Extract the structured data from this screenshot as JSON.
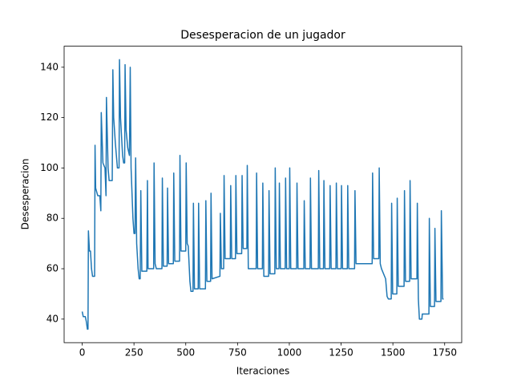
{
  "chart_data": {
    "type": "line",
    "title": "Desesperacion de un jugador",
    "x_label": "Iteraciones",
    "y_label": "Desesperacion",
    "x": [
      0,
      5,
      15,
      20,
      25,
      28,
      30,
      35,
      40,
      45,
      50,
      60,
      62,
      65,
      75,
      85,
      90,
      92,
      100,
      110,
      115,
      117,
      125,
      130,
      145,
      148,
      152,
      160,
      170,
      178,
      180,
      185,
      195,
      200,
      205,
      207,
      212,
      220,
      228,
      232,
      236,
      245,
      250,
      255,
      258,
      263,
      270,
      275,
      280,
      283,
      288,
      300,
      312,
      315,
      318,
      345,
      347,
      352,
      358,
      385,
      387,
      392,
      410,
      412,
      417,
      440,
      442,
      447,
      470,
      472,
      477,
      500,
      502,
      507,
      512,
      520,
      525,
      535,
      537,
      542,
      560,
      562,
      567,
      595,
      597,
      602,
      620,
      622,
      627,
      665,
      667,
      672,
      683,
      685,
      690,
      715,
      717,
      722,
      740,
      742,
      747,
      770,
      772,
      777,
      795,
      797,
      802,
      840,
      842,
      847,
      870,
      872,
      877,
      900,
      902,
      907,
      930,
      932,
      937,
      950,
      952,
      957,
      980,
      982,
      987,
      1000,
      1002,
      1007,
      1035,
      1037,
      1042,
      1070,
      1072,
      1077,
      1100,
      1102,
      1107,
      1140,
      1142,
      1147,
      1165,
      1167,
      1172,
      1195,
      1197,
      1202,
      1225,
      1227,
      1232,
      1250,
      1252,
      1257,
      1280,
      1282,
      1287,
      1315,
      1317,
      1322,
      1400,
      1402,
      1407,
      1432,
      1434,
      1439,
      1445,
      1465,
      1472,
      1478,
      1492,
      1494,
      1499,
      1519,
      1521,
      1526,
      1554,
      1556,
      1561,
      1581,
      1583,
      1588,
      1616,
      1618,
      1623,
      1628,
      1640,
      1642,
      1674,
      1676,
      1681,
      1701,
      1703,
      1708,
      1732,
      1734,
      1740,
      1745
    ],
    "series": [
      {
        "name": "Desesperacion",
        "color": "#1f77b4",
        "values": [
          43,
          41,
          41,
          39,
          36,
          36,
          75,
          67,
          67,
          60,
          57,
          57,
          109,
          92,
          89,
          89,
          83,
          122,
          102,
          100,
          89,
          128,
          100,
          95,
          95,
          139,
          120,
          110,
          100,
          100,
          143,
          120,
          105,
          102,
          102,
          141,
          115,
          108,
          105,
          140,
          100,
          80,
          74,
          74,
          104,
          70,
          60,
          56,
          56,
          91,
          59,
          59,
          59,
          95,
          60,
          60,
          102,
          62,
          60,
          60,
          96,
          61,
          61,
          92,
          62,
          62,
          98,
          63,
          63,
          105,
          67,
          67,
          102,
          70,
          69,
          55,
          51,
          51,
          86,
          52,
          52,
          86,
          52,
          52,
          87,
          55,
          55,
          90,
          56,
          57,
          82,
          60,
          60,
          97,
          64,
          64,
          93,
          64,
          64,
          97,
          66,
          66,
          97,
          68,
          68,
          101,
          60,
          60,
          98,
          60,
          60,
          94,
          57,
          57,
          91,
          58,
          58,
          100,
          60,
          60,
          94,
          60,
          60,
          96,
          60,
          60,
          100,
          60,
          60,
          94,
          60,
          60,
          87,
          60,
          60,
          96,
          60,
          60,
          99,
          60,
          60,
          95,
          60,
          60,
          93,
          60,
          60,
          94,
          60,
          60,
          93,
          60,
          60,
          93,
          60,
          60,
          91,
          62,
          62,
          98,
          64,
          64,
          100,
          62,
          60,
          56,
          49,
          48,
          48,
          86,
          50,
          50,
          88,
          53,
          53,
          91,
          55,
          55,
          95,
          56,
          56,
          86,
          48,
          40,
          40,
          42,
          42,
          80,
          45,
          45,
          76,
          47,
          47,
          83,
          48,
          48
        ]
      }
    ],
    "xlim": [
      -87.25,
      1832.25
    ],
    "ylim": [
      30.65,
      148.35
    ],
    "xticks": [
      0,
      250,
      500,
      750,
      1000,
      1250,
      1500,
      1750
    ],
    "yticks": [
      40,
      60,
      80,
      100,
      120,
      140
    ]
  }
}
